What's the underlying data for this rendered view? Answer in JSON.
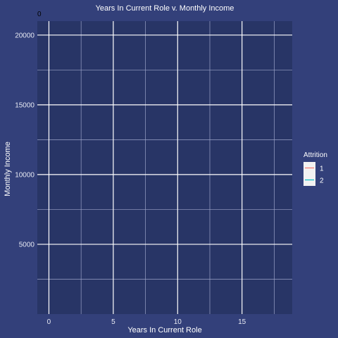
{
  "chart_data": {
    "type": "line",
    "title": "Years In Current Role v. Monthly Income",
    "xlabel": "Years In Current Role",
    "ylabel": "Monthly Income",
    "corner_label": "0",
    "xlim": [
      -0.9,
      18.9
    ],
    "ylim": [
      0,
      21000
    ],
    "x_ticks": [
      0,
      5,
      10,
      15
    ],
    "x_minor": [
      2.5,
      7.5,
      12.5,
      17.5
    ],
    "y_ticks": [
      5000,
      10000,
      15000,
      20000
    ],
    "y_minor": [
      2500,
      7500,
      12500,
      17500
    ],
    "grid": true,
    "legend": {
      "title": "Attrition",
      "placement": "right",
      "items": [
        {
          "label": "1",
          "color": "#f8766d"
        },
        {
          "label": "2",
          "color": "#00bfc4"
        }
      ]
    },
    "series": [
      {
        "name": "1",
        "color": "#f8766d",
        "x": [],
        "y": []
      },
      {
        "name": "2",
        "color": "#00bfc4",
        "x": [],
        "y": []
      }
    ],
    "colors": {
      "background": "#33407a",
      "panel": "#283566",
      "grid_major": "#ffffff",
      "grid_minor": "#9ba3c8"
    }
  }
}
